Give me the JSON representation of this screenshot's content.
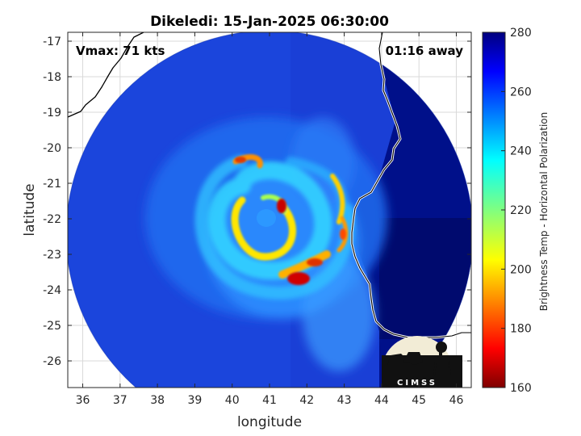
{
  "title": "Dikeledi: 15-Jan-2025 06:30:00",
  "annotations": {
    "vmax": "Vmax: 71 kts",
    "away": "01:16 away"
  },
  "axes": {
    "xlabel": "longitude",
    "ylabel": "latitude",
    "xticks": [
      "36",
      "37",
      "38",
      "39",
      "40",
      "41",
      "42",
      "43",
      "44",
      "45",
      "46"
    ],
    "yticks": [
      "-17",
      "-18",
      "-19",
      "-20",
      "-21",
      "-22",
      "-23",
      "-24",
      "-25",
      "-26"
    ],
    "xlim": [
      35.6,
      46.4
    ],
    "ylim": [
      -26.75,
      -16.75
    ],
    "grid": true
  },
  "colorbar": {
    "label": "Brightness Temp - Horizontal Polarization",
    "ticks": [
      "280",
      "260",
      "240",
      "220",
      "200",
      "180",
      "160"
    ],
    "range": [
      160,
      280
    ],
    "colormap": "jet"
  },
  "logo": {
    "text": "CIMSS"
  },
  "colors": {
    "background_cold": "#0a2a9c",
    "deep_navy": "#00005e",
    "coastline": "#000000",
    "grid": "#d9d9d9"
  }
}
